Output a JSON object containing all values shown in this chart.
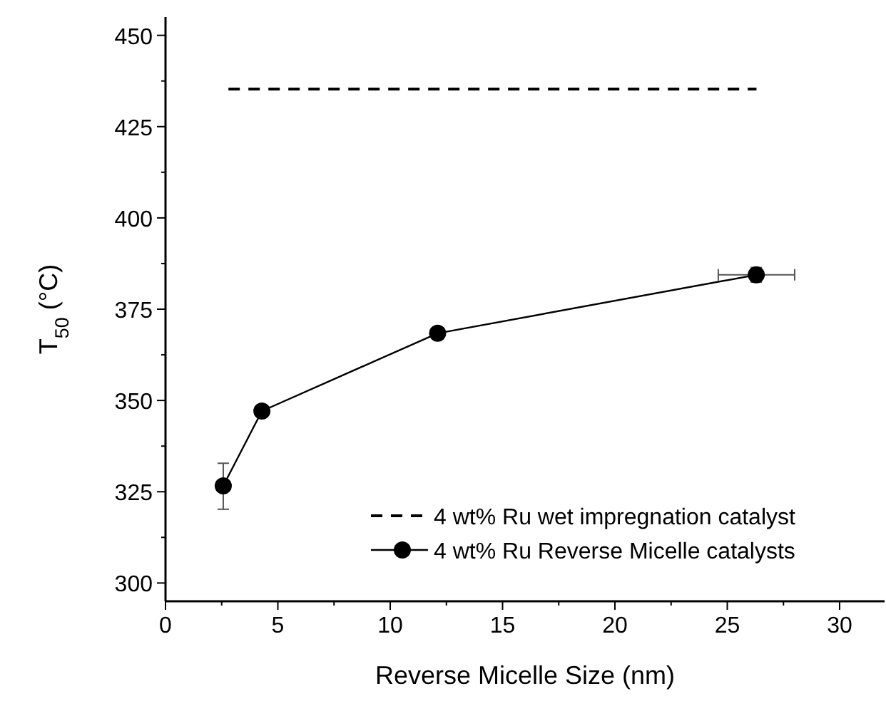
{
  "chart_data": {
    "type": "line",
    "xlabel": "Reverse Micelle Size (nm)",
    "ylabel": "T$_{50}$ (°C)",
    "xlim": [
      0,
      32
    ],
    "ylim": [
      295,
      455
    ],
    "xticks": [
      0,
      {
        "value": 2.5,
        "label": null
      },
      5,
      {
        "value": 7.5,
        "label": null
      },
      10,
      {
        "value": 12.5,
        "label": null
      },
      15,
      {
        "value": 17.5,
        "label": null
      },
      20,
      {
        "value": 22.5,
        "label": null
      },
      25,
      {
        "value": 27.5,
        "label": null
      },
      30
    ],
    "yticks": [
      300,
      {
        "value": 312.5,
        "label": null
      },
      325,
      {
        "value": 337.5,
        "label": null
      },
      350,
      {
        "value": 362.5,
        "label": null
      },
      375,
      {
        "value": 387.5,
        "label": null
      },
      400,
      {
        "value": 412.5,
        "label": null
      },
      425,
      {
        "value": 437.5,
        "label": null
      },
      450
    ],
    "legend": "bottom right",
    "series": [
      {
        "name": "4 wt% Ru wet impregnation catalyst",
        "color": "#000000",
        "x": [
          2.8,
          26.3
        ],
        "values": [
          435.3,
          435.3
        ],
        "line_style": "dashed",
        "marker": "none"
      },
      {
        "name": "4 wt% Ru Reverse Micelle catalysts",
        "color": "#000000",
        "x": [
          2.57,
          4.29,
          12.11,
          26.29
        ],
        "values": [
          326.6,
          347.1,
          368.4,
          384.4
        ],
        "line_style": "solid",
        "marker": "circle",
        "errors": [
          [
            320.2,
            332.8
          ],
          1,
          1,
          2
        ],
        "xerrors": [
          null,
          0.2,
          0.2,
          [
            24.6,
            28.0
          ]
        ]
      }
    ]
  }
}
